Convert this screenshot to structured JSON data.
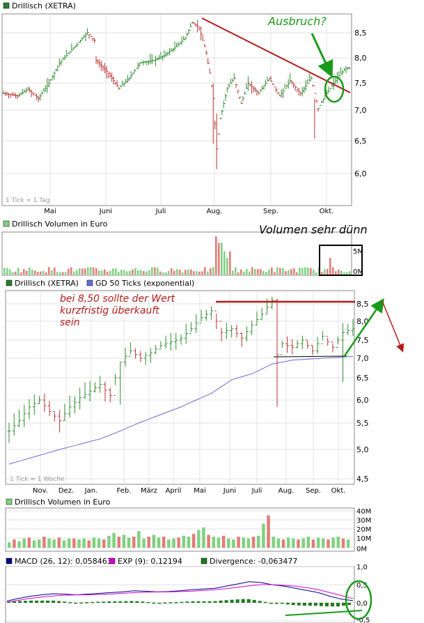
{
  "colors": {
    "up": "#2e8b2e",
    "down": "#b83232",
    "vol_up": "#7fd27f",
    "vol_down": "#e37b7b",
    "gd50": "#6a6ad8",
    "macd": "#000080",
    "exp": "#d000d0",
    "divergence": "#1e7a1e",
    "annotation_red": "#b31b1b",
    "annotation_green": "#1a9a1a",
    "grid": "#d8d8d8",
    "frame": "#8a8a8a"
  },
  "chart_data": [
    {
      "type": "candlestick",
      "id": "daily_price",
      "legend": [
        {
          "name": "Drillisch (XETRA)",
          "color": "#2e7d32"
        }
      ],
      "tick_note": "1 Tick = 1 Tag",
      "x_labels": [
        "Mai",
        "Juni",
        "Juli",
        "Aug.",
        "Sep.",
        "Okt."
      ],
      "y_ticks": [
        "8,5",
        "8,0",
        "7,5",
        "7,0",
        "6,5",
        "6,0"
      ],
      "ylim": [
        5.7,
        8.85
      ],
      "grid": true,
      "approx_closes_start": 7.3,
      "approx_path": [
        [
          0,
          7.3
        ],
        [
          8,
          7.25
        ],
        [
          14,
          7.38
        ],
        [
          20,
          7.2
        ],
        [
          26,
          7.5
        ],
        [
          32,
          7.9
        ],
        [
          40,
          8.2
        ],
        [
          48,
          8.5
        ],
        [
          52,
          8.35
        ],
        [
          53,
          7.95
        ],
        [
          60,
          7.7
        ],
        [
          66,
          7.4
        ],
        [
          72,
          7.6
        ],
        [
          78,
          7.9
        ],
        [
          86,
          7.95
        ],
        [
          92,
          8.05
        ],
        [
          98,
          8.2
        ],
        [
          104,
          8.4
        ],
        [
          108,
          8.7
        ],
        [
          112,
          8.6
        ],
        [
          116,
          8.1
        ],
        [
          118,
          7.7
        ],
        [
          120,
          7.2
        ],
        [
          122,
          6.2
        ],
        [
          124,
          6.8
        ],
        [
          128,
          7.4
        ],
        [
          132,
          7.6
        ],
        [
          136,
          7.1
        ],
        [
          140,
          7.5
        ],
        [
          146,
          7.3
        ],
        [
          152,
          7.6
        ],
        [
          158,
          7.25
        ],
        [
          164,
          7.55
        ],
        [
          170,
          7.3
        ],
        [
          176,
          7.6
        ],
        [
          180,
          7.0
        ],
        [
          184,
          7.25
        ],
        [
          188,
          7.45
        ],
        [
          192,
          7.65
        ],
        [
          196,
          7.8
        ]
      ],
      "trendline": {
        "from": [
          108,
          8.75
        ],
        "to": [
          198,
          7.3
        ],
        "color": "#b31b1b"
      },
      "annotations": [
        {
          "text": "Ausbruch?",
          "color": "#1a9a1a"
        }
      ]
    },
    {
      "type": "bar",
      "id": "daily_volume",
      "legend": [
        {
          "name": "Drillisch Volumen in Euro",
          "color": "#7fd27f"
        }
      ],
      "y_ticks": [
        "5M",
        "0M"
      ],
      "annotations": [
        {
          "text": "Volumen sehr dünn"
        }
      ]
    },
    {
      "type": "candlestick",
      "id": "weekly_price",
      "legend": [
        {
          "name": "Drillisch (XETRA)",
          "color": "#2e7d32"
        },
        {
          "name": "GD 50 Ticks (exponential)",
          "color": "#6a6ad8"
        }
      ],
      "tick_note": "1 Tick = 1 Woche",
      "x_labels": [
        "Nov.",
        "Dez.",
        "Jan.",
        "Feb.",
        "März",
        "April",
        "Mai",
        "Juni",
        "Juli",
        "Aug.",
        "Sep.",
        "Okt."
      ],
      "y_ticks": [
        "8,5",
        "8,0",
        "7,5",
        "7,0",
        "6,5",
        "6,0",
        "5,5",
        "5,0",
        "4,5"
      ],
      "ylim": [
        4.45,
        8.7
      ],
      "grid": true,
      "approx_path": [
        [
          0,
          5.35
        ],
        [
          2,
          5.55
        ],
        [
          4,
          5.85
        ],
        [
          6,
          6.0
        ],
        [
          8,
          5.75
        ],
        [
          10,
          5.55
        ],
        [
          12,
          5.85
        ],
        [
          14,
          6.05
        ],
        [
          16,
          6.2
        ],
        [
          18,
          6.35
        ],
        [
          20,
          6.1
        ],
        [
          22,
          6.9
        ],
        [
          24,
          7.2
        ],
        [
          26,
          7.0
        ],
        [
          28,
          7.15
        ],
        [
          30,
          7.35
        ],
        [
          32,
          7.45
        ],
        [
          34,
          7.55
        ],
        [
          36,
          7.8
        ],
        [
          38,
          8.1
        ],
        [
          40,
          8.3
        ],
        [
          42,
          7.7
        ],
        [
          44,
          7.8
        ],
        [
          46,
          7.55
        ],
        [
          48,
          7.9
        ],
        [
          50,
          8.2
        ],
        [
          52,
          8.6
        ],
        [
          53,
          7.1
        ],
        [
          54,
          7.4
        ],
        [
          56,
          7.3
        ],
        [
          58,
          7.5
        ],
        [
          60,
          7.2
        ],
        [
          62,
          7.6
        ],
        [
          64,
          7.3
        ],
        [
          66,
          7.7
        ],
        [
          68,
          7.8
        ]
      ],
      "gd50_path": [
        [
          0,
          4.75
        ],
        [
          6,
          4.9
        ],
        [
          12,
          5.05
        ],
        [
          18,
          5.2
        ],
        [
          22,
          5.35
        ],
        [
          28,
          5.6
        ],
        [
          34,
          5.85
        ],
        [
          40,
          6.15
        ],
        [
          44,
          6.45
        ],
        [
          48,
          6.6
        ],
        [
          52,
          6.85
        ],
        [
          56,
          6.95
        ],
        [
          62,
          7.0
        ],
        [
          68,
          7.05
        ]
      ],
      "resistance_line": {
        "y": 8.5,
        "color": "#b31b1b"
      },
      "support_line": {
        "y": 7.05,
        "color": "#000000"
      },
      "annotations": [
        {
          "text": "bei 8,50 sollte der Wert",
          "color": "#b31b1b"
        },
        {
          "text": "kurzfristig überkauft",
          "color": "#b31b1b"
        },
        {
          "text": "sein",
          "color": "#b31b1b"
        }
      ]
    },
    {
      "type": "bar",
      "id": "weekly_volume",
      "legend": [
        {
          "name": "Drillisch Volumen in Euro",
          "color": "#7fd27f"
        }
      ],
      "y_ticks": [
        "40M",
        "30M",
        "20M",
        "10M",
        "0M"
      ],
      "ylim": [
        0,
        40
      ],
      "values_approx": [
        6,
        9,
        7,
        10,
        11,
        8,
        9,
        12,
        10,
        9,
        11,
        8,
        10,
        10,
        9,
        10,
        8,
        11,
        10,
        9,
        13,
        16,
        12,
        14,
        11,
        12,
        18,
        10,
        12,
        14,
        11,
        12,
        9,
        10,
        11,
        13,
        12,
        15,
        19,
        22,
        14,
        12,
        11,
        13,
        10,
        9,
        12,
        11,
        10,
        12,
        13,
        26,
        35,
        12,
        10,
        9,
        11,
        10,
        9,
        10,
        12,
        9,
        11,
        10,
        9,
        11,
        12,
        10,
        9
      ]
    },
    {
      "type": "line",
      "id": "macd",
      "legend": [
        {
          "name": "MACD (26, 12): 0,058463",
          "color": "#000080"
        },
        {
          "name": "EXP (9): 0,12194",
          "color": "#d000d0"
        },
        {
          "name": "Divergence: -0,063477",
          "color": "#1e7a1e"
        }
      ],
      "y_ticks": [
        "1,0",
        "0,5",
        "0,0",
        "-0,5"
      ],
      "ylim": [
        -0.55,
        1.05
      ],
      "series": [
        {
          "name": "MACD (26, 12)",
          "values": [
            0.05,
            0.12,
            0.18,
            0.22,
            0.25,
            0.24,
            0.22,
            0.24,
            0.26,
            0.28,
            0.3,
            0.33,
            0.32,
            0.3,
            0.31,
            0.33,
            0.36,
            0.38,
            0.4,
            0.46,
            0.52,
            0.58,
            0.56,
            0.5,
            0.46,
            0.4,
            0.34,
            0.28,
            0.18,
            0.1,
            0.06
          ]
        },
        {
          "name": "EXP (9)",
          "values": [
            0.02,
            0.07,
            0.12,
            0.16,
            0.19,
            0.21,
            0.22,
            0.22,
            0.23,
            0.24,
            0.26,
            0.28,
            0.29,
            0.3,
            0.3,
            0.31,
            0.32,
            0.34,
            0.36,
            0.39,
            0.43,
            0.47,
            0.5,
            0.5,
            0.48,
            0.46,
            0.42,
            0.36,
            0.28,
            0.2,
            0.12
          ]
        },
        {
          "name": "Divergence",
          "values": [
            0.03,
            0.05,
            0.06,
            0.06,
            0.06,
            0.03,
            0.0,
            0.02,
            0.03,
            0.04,
            0.04,
            0.05,
            0.03,
            0.0,
            0.01,
            0.02,
            0.04,
            0.04,
            0.04,
            0.07,
            0.09,
            0.11,
            0.06,
            0.0,
            -0.02,
            -0.06,
            -0.08,
            -0.08,
            -0.1,
            -0.1,
            -0.06
          ]
        }
      ]
    }
  ]
}
